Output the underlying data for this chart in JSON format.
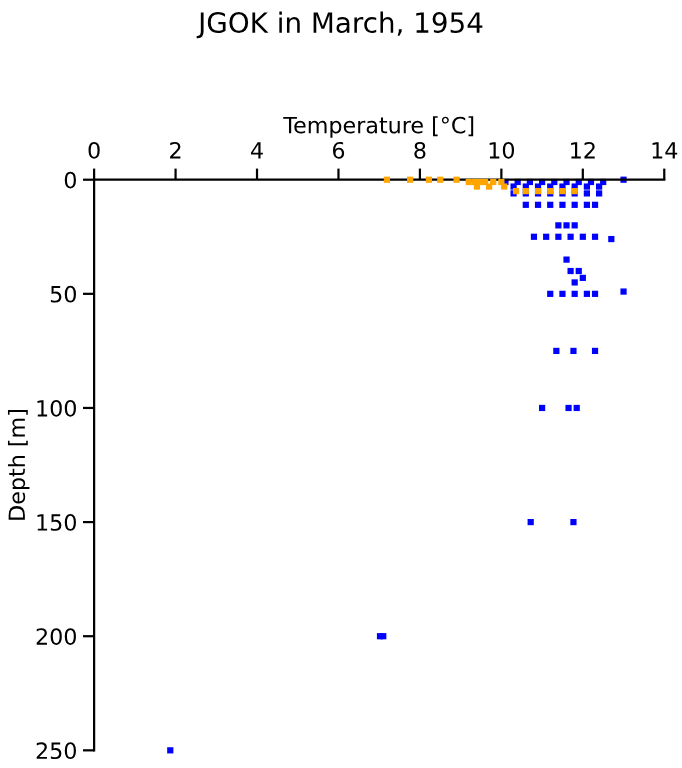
{
  "chart_data": {
    "type": "scatter",
    "title": "JGOK in March, 1954",
    "xlabel": "Temperature [°C]",
    "ylabel": "Depth [m]",
    "xlim": [
      0,
      14
    ],
    "xticks": [
      0,
      2,
      4,
      6,
      8,
      10,
      12,
      14
    ],
    "ylim": [
      250,
      0
    ],
    "yticks": [
      0,
      50,
      100,
      150,
      200,
      250
    ],
    "grid": false,
    "legend": false,
    "marker": "square",
    "series": [
      {
        "color": "#0000ff",
        "x": [
          10.1,
          10.4,
          10.7,
          11.0,
          11.3,
          11.6,
          11.9,
          12.2,
          12.5,
          13.0,
          10.3,
          10.6,
          10.9,
          11.2,
          11.5,
          11.8,
          12.1,
          12.4,
          10.3,
          10.6,
          10.9,
          11.2,
          11.5,
          11.8,
          12.1,
          12.4,
          10.6,
          10.9,
          11.2,
          11.5,
          11.8,
          12.1,
          12.3,
          11.4,
          11.6,
          11.8,
          10.8,
          11.1,
          11.4,
          11.7,
          12.0,
          12.3,
          12.7,
          11.6,
          11.7,
          11.9,
          11.8,
          12.0,
          11.2,
          11.5,
          11.8,
          12.1,
          12.3,
          13.0,
          11.35,
          11.77,
          12.3,
          11.0,
          11.65,
          11.85,
          10.72,
          11.77,
          7.02,
          7.1,
          1.87
        ],
        "values": [
          1,
          1,
          1,
          1,
          1,
          1,
          1,
          1,
          1,
          0,
          3,
          3,
          3,
          3,
          3,
          3,
          3,
          3,
          6,
          6,
          6,
          6,
          6,
          6,
          6,
          6,
          11,
          11,
          11,
          11,
          11,
          11,
          11,
          20,
          20,
          20,
          25,
          25,
          25,
          25,
          25,
          25,
          26,
          35,
          40,
          40,
          45,
          43,
          50,
          50,
          50,
          50,
          50,
          49,
          75,
          75,
          75,
          100,
          100,
          100,
          150,
          150,
          200,
          200,
          250
        ]
      },
      {
        "color": "#ffa500",
        "x": [
          7.19,
          7.76,
          8.22,
          8.5,
          8.9,
          9.2,
          9.35,
          9.5,
          9.6,
          9.8,
          10.0,
          9.4,
          9.7,
          10.07,
          10.36,
          10.6,
          10.9,
          11.2,
          11.5,
          11.8
        ],
        "values": [
          0,
          0,
          0,
          0,
          0,
          1,
          1,
          1,
          1,
          1,
          1,
          3,
          3,
          3,
          5,
          5,
          5,
          5,
          5,
          5
        ]
      }
    ]
  }
}
